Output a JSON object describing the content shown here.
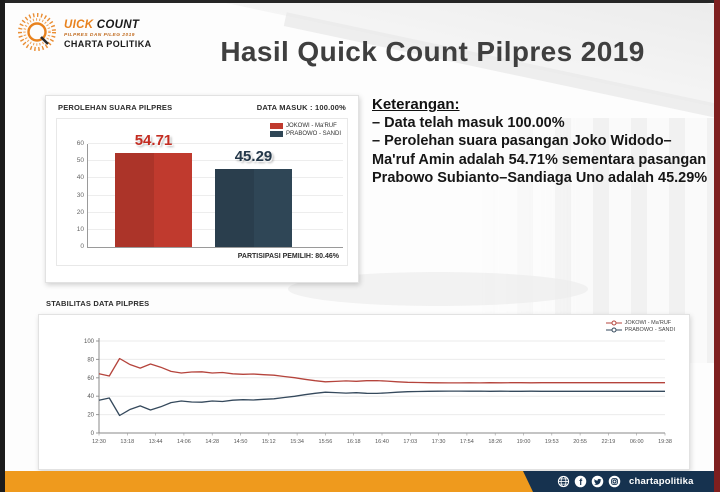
{
  "slide": {
    "title": "Hasil Quick Count Pilpres 2019",
    "logo": {
      "brand_accent": "UICK",
      "brand_rest": " COUNT",
      "subtitle": "PILPRES DAN PILEG 2019",
      "org": "CHARTA POLITIKA"
    },
    "footer": {
      "handle": "chartapolitika"
    }
  },
  "colors": {
    "accent_orange": "#EF9A1D",
    "footer_navy": "#16324F",
    "edge_maroon": "#7E1F1F",
    "jokowi_red": "#C03A2E",
    "prabowo_navy": "#2F4656",
    "title_gray": "#3F3F3F"
  },
  "bar_panel": {
    "title": "PEROLEHAN SUARA PILPRES",
    "data_masuk": "DATA MASUK : 100.00%",
    "partisipasi": "PARTISIPASI PEMILIH: 80.46%"
  },
  "keterangan": {
    "heading": "Keterangan:",
    "lines": [
      "– Data telah masuk 100.00%",
      "– Perolehan suara pasangan Joko Widodo–Ma'ruf Amin adalah 54.71% sementara pasangan Prabowo Subianto–Sandiaga Uno adalah 45.29%"
    ]
  },
  "line_panel": {
    "title": "STABILITAS DATA PILPRES"
  },
  "chart_data": [
    {
      "type": "bar",
      "title": "PEROLEHAN SUARA PILPRES",
      "categories": [
        "JOKOWI - Ma'RUF",
        "PRABOWO - SANDI"
      ],
      "values": [
        54.71,
        45.29
      ],
      "colors": [
        "#C03A2E",
        "#2F4656"
      ],
      "label_colors": [
        "#C42C21",
        "#24384A"
      ],
      "ylim": [
        0,
        60
      ],
      "yticks": [
        0,
        10,
        20,
        30,
        40,
        50,
        60
      ],
      "legend": [
        {
          "label": "JOKOWI - Ma'RUF",
          "color": "#C03A2E"
        },
        {
          "label": "PRABOWO - SANDI",
          "color": "#2F4656"
        }
      ],
      "footnote": "PARTISIPASI PEMILIH: 80.46%",
      "status": "DATA MASUK : 100.00%",
      "legend_position": "top-right",
      "grid": true
    },
    {
      "type": "line",
      "title": "STABILITAS DATA PILPRES",
      "x_labels": [
        "12:30",
        "13:18",
        "13:44",
        "14:06",
        "14:28",
        "14:50",
        "15:12",
        "15:34",
        "15:56",
        "16:18",
        "16:40",
        "17:03",
        "17:30",
        "17:54",
        "18:26",
        "19:00",
        "19:53",
        "20:55",
        "22:19",
        "06:00",
        "19:38"
      ],
      "ylim": [
        0,
        100
      ],
      "yticks": [
        0,
        20,
        40,
        60,
        80,
        100
      ],
      "series": [
        {
          "name": "JOKOWI - Ma'RUF",
          "color": "#B5443C",
          "values": [
            64.5,
            62,
            81,
            74.5,
            70.5,
            75,
            71.5,
            67,
            65.2,
            66.3,
            66.5,
            65.2,
            65.8,
            64.4,
            63.8,
            64.1,
            63.4,
            62.8,
            61.4,
            60.1,
            58.4,
            56.8,
            55.6,
            56.1,
            56.6,
            56.2,
            56.9,
            57,
            56.4,
            55.7,
            55.1,
            54.9,
            54.7,
            54.6,
            54.5,
            54.5,
            54.6,
            54.5,
            54.7,
            54.6,
            54.7,
            54.7,
            54.6,
            54.7,
            54.7,
            54.7,
            54.7,
            54.7,
            54.7,
            54.7,
            54.7,
            54.7,
            54.7,
            54.7,
            54.7,
            54.71
          ]
        },
        {
          "name": "PRABOWO - SANDI",
          "color": "#35495C",
          "values": [
            35.5,
            38,
            19,
            25.5,
            29.5,
            25,
            28.5,
            33,
            34.8,
            33.7,
            33.5,
            34.8,
            34.2,
            35.6,
            36.2,
            35.9,
            36.6,
            37.2,
            38.6,
            39.9,
            41.6,
            43.2,
            44.4,
            43.9,
            43.4,
            43.8,
            43.1,
            43,
            43.6,
            44.3,
            44.9,
            45.1,
            45.3,
            45.4,
            45.5,
            45.5,
            45.4,
            45.5,
            45.3,
            45.4,
            45.3,
            45.3,
            45.4,
            45.3,
            45.3,
            45.3,
            45.3,
            45.3,
            45.3,
            45.3,
            45.3,
            45.3,
            45.3,
            45.3,
            45.3,
            45.29
          ]
        }
      ],
      "legend_position": "top-right",
      "grid": true
    }
  ]
}
